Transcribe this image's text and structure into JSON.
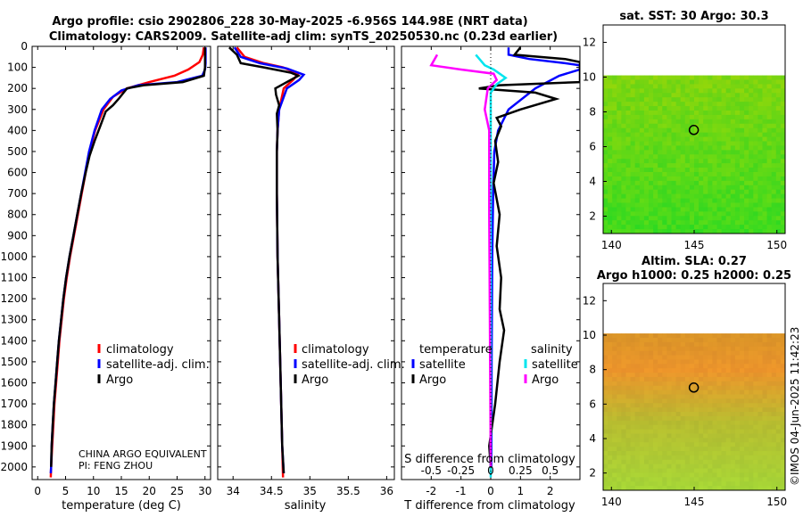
{
  "header": {
    "line1": "Argo profile: csio 2902806_228 30-May-2025 -6.956S 144.98E (NRT data)",
    "line2": "Climatology: CARS2009. Satellite-adj clim: synTS_20250530.nc (0.23d earlier)"
  },
  "credit": "©IMOS 04-Jun-2025 11:42:23",
  "colors": {
    "climatology": "#ff0000",
    "satellite": "#0000ff",
    "argo": "#000000",
    "sat_salinity": "#00e5ee",
    "argo_salinity": "#ff00ff"
  },
  "chart_data": [
    {
      "type": "line",
      "id": "temperature",
      "xlabel": "temperature (deg C)",
      "ylabel": "",
      "xlim": [
        -1,
        31
      ],
      "ylim": [
        2060,
        0
      ],
      "xticks": [
        0,
        5,
        10,
        15,
        20,
        25,
        30
      ],
      "yticks": [
        0,
        100,
        200,
        300,
        400,
        500,
        600,
        700,
        800,
        900,
        1000,
        1100,
        1200,
        1300,
        1400,
        1500,
        1600,
        1700,
        1800,
        1900,
        2000
      ],
      "legend": [
        "climatology",
        "satellite-adj. clim.",
        "Argo"
      ],
      "notes": [
        "CHINA ARGO EQUIVALENT",
        "PI: FENG ZHOU"
      ],
      "series": [
        {
          "name": "climatology",
          "color": "#ff0000",
          "points": [
            [
              29.8,
              5
            ],
            [
              29.6,
              40
            ],
            [
              29.0,
              75
            ],
            [
              27,
              110
            ],
            [
              24.5,
              140
            ],
            [
              20,
              170
            ],
            [
              16,
              200
            ],
            [
              13.5,
              240
            ],
            [
              11.8,
              300
            ],
            [
              10.3,
              400
            ],
            [
              9.3,
              500
            ],
            [
              8.6,
              600
            ],
            [
              7.9,
              700
            ],
            [
              7.2,
              800
            ],
            [
              6.5,
              900
            ],
            [
              5.8,
              1000
            ],
            [
              5.2,
              1100
            ],
            [
              4.7,
              1200
            ],
            [
              4.3,
              1300
            ],
            [
              3.9,
              1400
            ],
            [
              3.6,
              1500
            ],
            [
              3.3,
              1600
            ],
            [
              3.0,
              1700
            ],
            [
              2.8,
              1800
            ],
            [
              2.6,
              1900
            ],
            [
              2.4,
              2000
            ],
            [
              2.35,
              2050
            ]
          ]
        },
        {
          "name": "satellite-adj. clim.",
          "color": "#0000ff",
          "points": [
            [
              30.1,
              5
            ],
            [
              30.1,
              80
            ],
            [
              30.0,
              110
            ],
            [
              29.5,
              140
            ],
            [
              25,
              170
            ],
            [
              18,
              185
            ],
            [
              15,
              210
            ],
            [
              13,
              250
            ],
            [
              11.5,
              300
            ],
            [
              10.2,
              400
            ],
            [
              9.2,
              500
            ],
            [
              8.5,
              600
            ],
            [
              7.8,
              700
            ],
            [
              7.1,
              800
            ],
            [
              6.4,
              900
            ],
            [
              5.7,
              1000
            ],
            [
              5.1,
              1100
            ],
            [
              4.6,
              1200
            ],
            [
              4.2,
              1300
            ],
            [
              3.8,
              1400
            ],
            [
              3.5,
              1500
            ],
            [
              3.2,
              1600
            ],
            [
              2.9,
              1700
            ],
            [
              2.7,
              1800
            ],
            [
              2.5,
              1900
            ],
            [
              2.4,
              2000
            ],
            [
              2.35,
              2030
            ]
          ]
        },
        {
          "name": "Argo",
          "color": "#000000",
          "points": [
            [
              30.0,
              5
            ],
            [
              30.0,
              100
            ],
            [
              29.8,
              140
            ],
            [
              26,
              170
            ],
            [
              19,
              185
            ],
            [
              16,
              200
            ],
            [
              14.5,
              250
            ],
            [
              13.5,
              280
            ],
            [
              12.2,
              310
            ],
            [
              11.2,
              380
            ],
            [
              10.2,
              450
            ],
            [
              9.3,
              520
            ],
            [
              8.6,
              600
            ],
            [
              7.8,
              700
            ],
            [
              7.1,
              800
            ],
            [
              6.4,
              900
            ],
            [
              5.7,
              1000
            ],
            [
              5.1,
              1100
            ],
            [
              4.6,
              1200
            ],
            [
              4.2,
              1300
            ],
            [
              3.8,
              1400
            ],
            [
              3.5,
              1500
            ],
            [
              3.2,
              1600
            ],
            [
              2.9,
              1700
            ],
            [
              2.7,
              1800
            ],
            [
              2.5,
              1900
            ],
            [
              2.4,
              2000
            ]
          ]
        }
      ]
    },
    {
      "type": "line",
      "id": "salinity",
      "xlabel": "salinity",
      "xlim": [
        33.8,
        36.1
      ],
      "ylim": [
        2060,
        0
      ],
      "xticks": [
        34,
        34.5,
        35,
        35.5,
        36
      ],
      "legend": [
        "climatology",
        "satellite-adj. clim.",
        "Argo"
      ],
      "series": [
        {
          "name": "climatology",
          "color": "#ff0000",
          "points": [
            [
              34.05,
              5
            ],
            [
              34.15,
              50
            ],
            [
              34.4,
              80
            ],
            [
              34.65,
              100
            ],
            [
              34.85,
              130
            ],
            [
              34.78,
              160
            ],
            [
              34.66,
              200
            ],
            [
              34.6,
              300
            ],
            [
              34.58,
              400
            ],
            [
              34.57,
              500
            ],
            [
              34.57,
              700
            ],
            [
              34.58,
              1000
            ],
            [
              34.6,
              1300
            ],
            [
              34.62,
              1600
            ],
            [
              34.64,
              1900
            ],
            [
              34.65,
              2050
            ]
          ]
        },
        {
          "name": "satellite-adj. clim.",
          "color": "#0000ff",
          "points": [
            [
              34.02,
              5
            ],
            [
              34.1,
              50
            ],
            [
              34.35,
              80
            ],
            [
              34.7,
              105
            ],
            [
              34.92,
              135
            ],
            [
              34.86,
              160
            ],
            [
              34.7,
              200
            ],
            [
              34.6,
              300
            ],
            [
              34.58,
              400
            ],
            [
              34.57,
              500
            ],
            [
              34.57,
              700
            ],
            [
              34.58,
              1000
            ],
            [
              34.6,
              1300
            ],
            [
              34.62,
              1600
            ],
            [
              34.64,
              1900
            ],
            [
              34.66,
              2030
            ]
          ]
        },
        {
          "name": "Argo",
          "color": "#000000",
          "points": [
            [
              33.95,
              5
            ],
            [
              34.05,
              40
            ],
            [
              34.1,
              80
            ],
            [
              34.4,
              100
            ],
            [
              34.75,
              125
            ],
            [
              34.85,
              140
            ],
            [
              34.75,
              160
            ],
            [
              34.55,
              200
            ],
            [
              34.56,
              230
            ],
            [
              34.6,
              280
            ],
            [
              34.57,
              320
            ],
            [
              34.58,
              400
            ],
            [
              34.57,
              500
            ],
            [
              34.57,
              700
            ],
            [
              34.58,
              1000
            ],
            [
              34.6,
              1300
            ],
            [
              34.62,
              1600
            ],
            [
              34.64,
              1900
            ],
            [
              34.66,
              2030
            ]
          ]
        }
      ]
    },
    {
      "type": "line",
      "id": "differences",
      "xlabel": "T difference from climatology",
      "xlabel_top": "S difference from climatology",
      "xlim": [
        -3,
        3
      ],
      "ylim": [
        2060,
        0
      ],
      "xticks": [
        -2,
        -1,
        0,
        1,
        2
      ],
      "xticks_salinity": [
        "-0.5",
        "-0.25",
        "0",
        "0.25",
        "0.5"
      ],
      "legend_temperature_title": "temperature",
      "legend_salinity_title": "salinity",
      "legend_temperature": [
        "satellite",
        "Argo"
      ],
      "legend_salinity": [
        "satellite",
        "Argo"
      ],
      "series": [
        {
          "name": "T satellite",
          "color": "#0000ff",
          "points": [
            [
              0.6,
              5
            ],
            [
              0.6,
              40
            ],
            [
              1.3,
              60
            ],
            [
              2.5,
              80
            ],
            [
              3.0,
              90
            ],
            [
              3.0,
              110
            ],
            [
              2.3,
              140
            ],
            [
              1.5,
              200
            ],
            [
              0.6,
              300
            ],
            [
              0.25,
              400
            ],
            [
              0.12,
              500
            ],
            [
              0.08,
              700
            ],
            [
              0.05,
              1000
            ],
            [
              0.03,
              1500
            ],
            [
              0.02,
              2000
            ]
          ]
        },
        {
          "name": "T Argo",
          "color": "#000000",
          "points": [
            [
              1.0,
              5
            ],
            [
              0.8,
              40
            ],
            [
              2.5,
              60
            ],
            [
              3.0,
              75
            ],
            [
              3.0,
              170
            ],
            [
              0.3,
              185
            ],
            [
              -0.4,
              200
            ],
            [
              1.5,
              220
            ],
            [
              2.2,
              250
            ],
            [
              1.0,
              300
            ],
            [
              0.2,
              340
            ],
            [
              0.35,
              380
            ],
            [
              0.15,
              450
            ],
            [
              0.25,
              550
            ],
            [
              0.1,
              650
            ],
            [
              0.3,
              800
            ],
            [
              0.2,
              950
            ],
            [
              0.35,
              1100
            ],
            [
              0.3,
              1250
            ],
            [
              0.45,
              1350
            ],
            [
              0.3,
              1500
            ],
            [
              0.15,
              1700
            ],
            [
              -0.05,
              1900
            ],
            [
              0.0,
              2000
            ]
          ]
        },
        {
          "name": "S satellite",
          "color": "#00e5ee",
          "points": [
            [
              -0.5,
              40
            ],
            [
              -0.2,
              90
            ],
            [
              0.1,
              110
            ],
            [
              0.5,
              150
            ],
            [
              0.2,
              180
            ],
            [
              0.0,
              220
            ],
            [
              0.0,
              2050
            ]
          ]
        },
        {
          "name": "S Argo",
          "color": "#ff00ff",
          "points": [
            [
              -1.8,
              40
            ],
            [
              -2.0,
              90
            ],
            [
              -1.0,
              110
            ],
            [
              0.1,
              130
            ],
            [
              0.2,
              160
            ],
            [
              -0.1,
              200
            ],
            [
              -0.2,
              300
            ],
            [
              -0.05,
              400
            ],
            [
              -0.05,
              800
            ],
            [
              -0.02,
              1500
            ],
            [
              0.0,
              2000
            ]
          ]
        }
      ]
    },
    {
      "type": "heatmap",
      "id": "sst",
      "title": "sat. SST: 30 Argo: 30.3",
      "xlim": [
        139.5,
        150.5
      ],
      "ylim": [
        1,
        13
      ],
      "xticks": [
        140,
        145,
        150
      ],
      "yticks": [
        2,
        4,
        6,
        8,
        10,
        12
      ],
      "data_top": 10.1,
      "marker": [
        144.98,
        6.96
      ],
      "palette": "sst"
    },
    {
      "type": "heatmap",
      "id": "sla",
      "title": "Altim. SLA: 0.27",
      "subtitle": "Argo h1000: 0.25 h2000: 0.25",
      "xlim": [
        139.5,
        150.5
      ],
      "ylim": [
        1,
        13
      ],
      "xticks": [
        140,
        145,
        150
      ],
      "yticks": [
        2,
        4,
        6,
        8,
        10,
        12
      ],
      "data_top": 10.1,
      "marker": [
        144.98,
        6.96
      ],
      "palette": "sla"
    }
  ]
}
